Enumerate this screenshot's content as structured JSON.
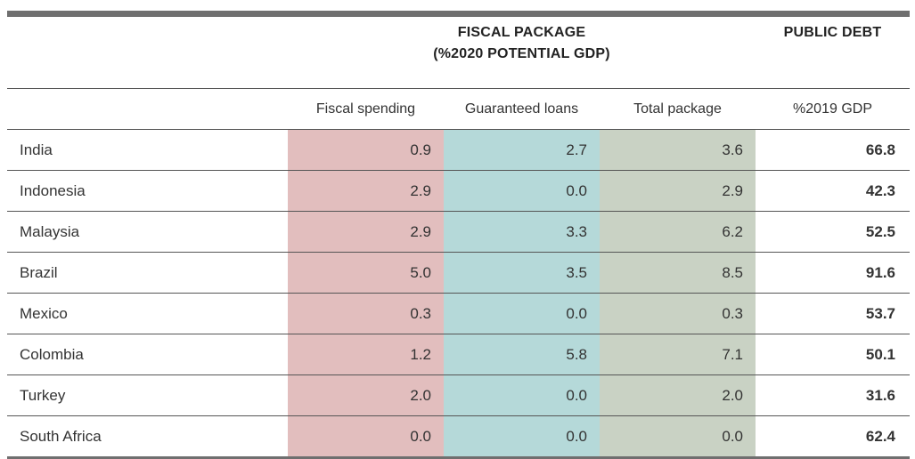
{
  "header": {
    "fiscal_package_line1": "FISCAL PACKAGE",
    "fiscal_package_line2": "(%2020 POTENTIAL GDP)",
    "public_debt": "PUBLIC DEBT"
  },
  "subheaders": {
    "fiscal_spending": "Fiscal spending",
    "guaranteed_loans": "Guaranteed loans",
    "total_package": "Total package",
    "debt_unit": "%2019 GDP"
  },
  "rows": [
    {
      "country": "India",
      "fiscal": "0.9",
      "loans": "2.7",
      "total": "3.6",
      "debt": "66.8"
    },
    {
      "country": "Indonesia",
      "fiscal": "2.9",
      "loans": "0.0",
      "total": "2.9",
      "debt": "42.3"
    },
    {
      "country": "Malaysia",
      "fiscal": "2.9",
      "loans": "3.3",
      "total": "6.2",
      "debt": "52.5"
    },
    {
      "country": "Brazil",
      "fiscal": "5.0",
      "loans": "3.5",
      "total": "8.5",
      "debt": "91.6"
    },
    {
      "country": "Mexico",
      "fiscal": "0.3",
      "loans": "0.0",
      "total": "0.3",
      "debt": "53.7"
    },
    {
      "country": "Colombia",
      "fiscal": "1.2",
      "loans": "5.8",
      "total": "7.1",
      "debt": "50.1"
    },
    {
      "country": "Turkey",
      "fiscal": "2.0",
      "loans": "0.0",
      "total": "2.0",
      "debt": "31.6"
    },
    {
      "country": "South Africa",
      "fiscal": "0.0",
      "loans": "0.0",
      "total": "0.0",
      "debt": "62.4"
    }
  ],
  "colors": {
    "fiscal_column": "#e2bebe",
    "loans_column": "#b5d9d9",
    "total_column": "#c9d2c4",
    "rule": "#6f6f6f"
  }
}
